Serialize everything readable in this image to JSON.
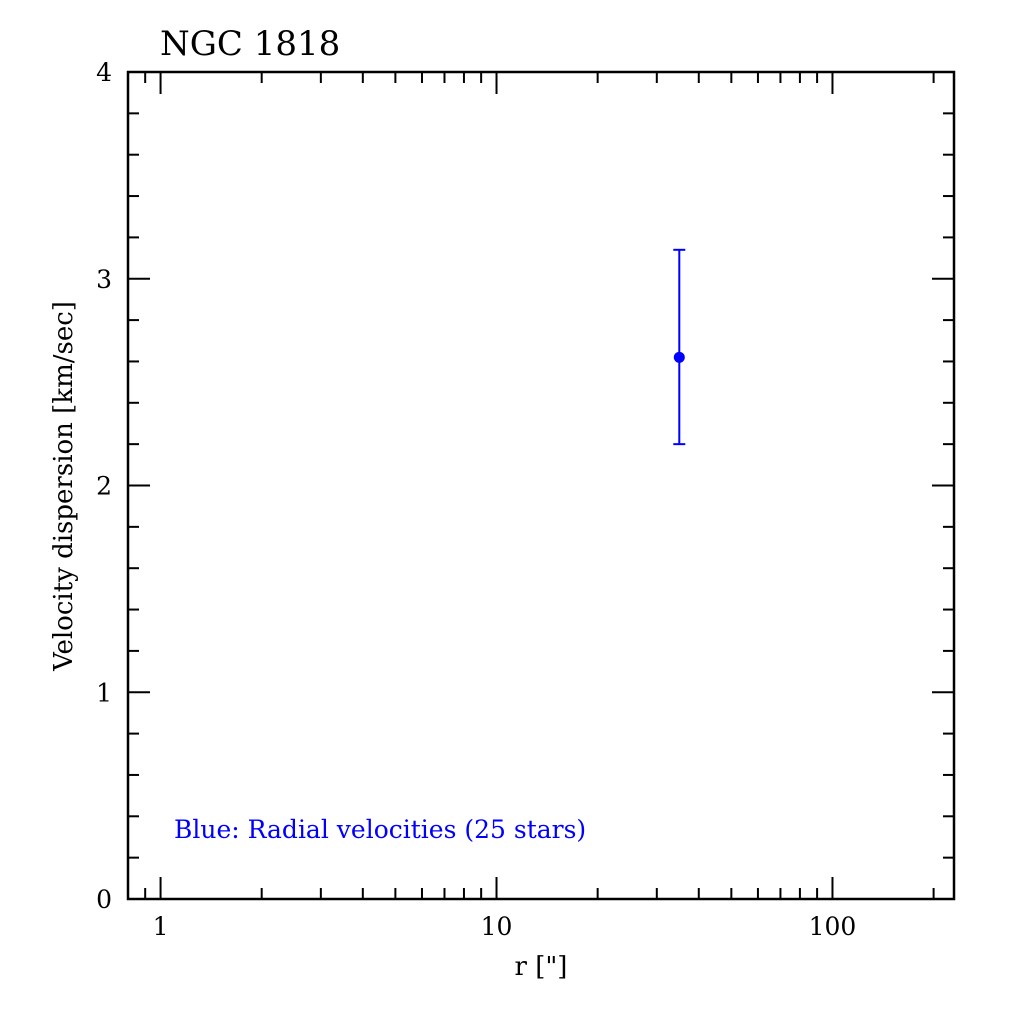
{
  "chart_data": {
    "type": "scatter",
    "title": "NGC 1818",
    "xlabel": "r [\"]",
    "ylabel": "Velocity dispersion [km/sec]",
    "x_scale": "log",
    "xlim": [
      0.8,
      230
    ],
    "ylim": [
      0,
      4
    ],
    "x_tick_labels": [
      "1",
      "10",
      "100"
    ],
    "y_tick_labels": [
      "0",
      "1",
      "2",
      "3",
      "4"
    ],
    "grid": false,
    "series": [
      {
        "color": "#0000ff",
        "points": [
          {
            "x": 35,
            "y": 2.62,
            "y_err_low": 2.2,
            "y_err_high": 3.14
          }
        ]
      }
    ],
    "annotations": [
      {
        "text": "Blue: Radial velocities (25 stars)",
        "color": "#0000ff",
        "position": "bottom-left"
      }
    ]
  }
}
